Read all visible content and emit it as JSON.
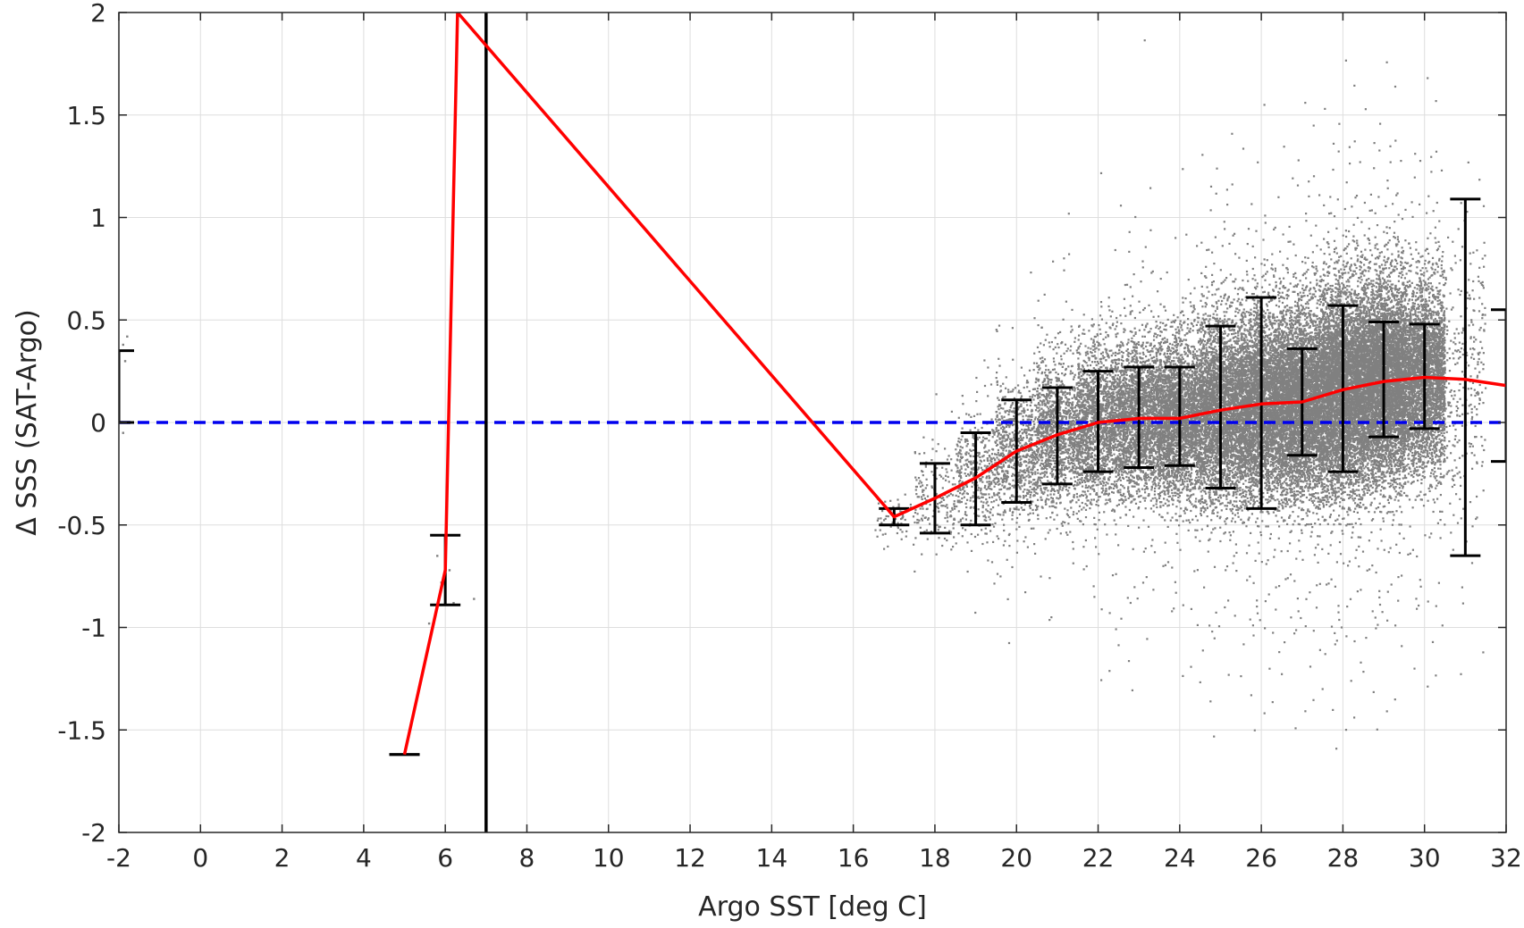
{
  "chart_data": {
    "type": "scatter",
    "xlabel": "Argo SST [deg C]",
    "ylabel": "Δ SSS (SAT-Argo)",
    "xlim": [
      -2,
      32
    ],
    "ylim": [
      -2,
      2
    ],
    "xticks": [
      -2,
      0,
      2,
      4,
      6,
      8,
      10,
      12,
      14,
      16,
      18,
      20,
      22,
      24,
      26,
      28,
      30,
      32
    ],
    "yticks": [
      -2,
      -1.5,
      -1,
      -0.5,
      0,
      0.5,
      1,
      1.5,
      2
    ],
    "xtick_labels": [
      "-2",
      "0",
      "2",
      "4",
      "6",
      "8",
      "10",
      "12",
      "14",
      "16",
      "18",
      "20",
      "22",
      "24",
      "26",
      "28",
      "30",
      "32"
    ],
    "ytick_labels": [
      "-2",
      "-1.5",
      "-1",
      "-0.5",
      "0",
      "0.5",
      "1",
      "1.5",
      "2"
    ],
    "grid": true,
    "colors": {
      "scatter": "#808080",
      "mean_line": "#ff0000",
      "error_bars": "#000000",
      "zero_line": "#0000ee",
      "vertical_line": "#000000"
    },
    "reference_line": {
      "y": 0,
      "style": "dashed"
    },
    "vertical_line": {
      "x": 7
    },
    "mean_line": {
      "x": [
        5,
        6,
        6.3,
        17,
        18,
        19,
        20,
        21,
        22,
        23,
        24,
        25,
        26,
        27,
        28,
        29,
        30,
        31,
        32
      ],
      "y": [
        -1.62,
        -0.72,
        2.0,
        -0.46,
        -0.37,
        -0.27,
        -0.14,
        -0.06,
        0.0,
        0.02,
        0.02,
        0.06,
        0.09,
        0.1,
        0.16,
        0.2,
        0.22,
        0.21,
        0.18
      ]
    },
    "error_bars": [
      {
        "x": -2,
        "low": 0.0,
        "high": 0.35
      },
      {
        "x": 5,
        "low": -1.62,
        "high": -1.62
      },
      {
        "x": 6,
        "low": -0.89,
        "high": -0.55
      },
      {
        "x": 17,
        "low": -0.5,
        "high": -0.42
      },
      {
        "x": 18,
        "low": -0.54,
        "high": -0.2
      },
      {
        "x": 19,
        "low": -0.5,
        "high": -0.05
      },
      {
        "x": 20,
        "low": -0.39,
        "high": 0.11
      },
      {
        "x": 21,
        "low": -0.3,
        "high": 0.17
      },
      {
        "x": 22,
        "low": -0.24,
        "high": 0.25
      },
      {
        "x": 23,
        "low": -0.22,
        "high": 0.27
      },
      {
        "x": 24,
        "low": -0.21,
        "high": 0.27
      },
      {
        "x": 25,
        "low": -0.32,
        "high": 0.47
      },
      {
        "x": 26,
        "low": -0.42,
        "high": 0.61
      },
      {
        "x": 27,
        "low": -0.16,
        "high": 0.36
      },
      {
        "x": 28,
        "low": -0.24,
        "high": 0.57
      },
      {
        "x": 29,
        "low": -0.07,
        "high": 0.49
      },
      {
        "x": 30,
        "low": -0.03,
        "high": 0.48
      },
      {
        "x": 31,
        "low": -0.65,
        "high": 1.09
      },
      {
        "x": 32,
        "low": -0.19,
        "high": 0.55
      }
    ],
    "scatter_density": [
      {
        "x": 17,
        "mean": -0.46,
        "spread": 0.08,
        "count": 60
      },
      {
        "x": 18,
        "mean": -0.37,
        "spread": 0.15,
        "count": 180
      },
      {
        "x": 19,
        "mean": -0.27,
        "spread": 0.2,
        "count": 420
      },
      {
        "x": 20,
        "mean": -0.14,
        "spread": 0.24,
        "count": 800
      },
      {
        "x": 21,
        "mean": -0.06,
        "spread": 0.24,
        "count": 1300
      },
      {
        "x": 22,
        "mean": 0.0,
        "spread": 0.25,
        "count": 1800
      },
      {
        "x": 23,
        "mean": 0.02,
        "spread": 0.25,
        "count": 2300
      },
      {
        "x": 24,
        "mean": 0.02,
        "spread": 0.25,
        "count": 2800
      },
      {
        "x": 25,
        "mean": 0.06,
        "spread": 0.3,
        "count": 3400
      },
      {
        "x": 26,
        "mean": 0.09,
        "spread": 0.3,
        "count": 4000
      },
      {
        "x": 27,
        "mean": 0.1,
        "spread": 0.3,
        "count": 4600
      },
      {
        "x": 28,
        "mean": 0.16,
        "spread": 0.33,
        "count": 5200
      },
      {
        "x": 29,
        "mean": 0.2,
        "spread": 0.32,
        "count": 5200
      },
      {
        "x": 30,
        "mean": 0.22,
        "spread": 0.3,
        "count": 3400
      },
      {
        "x": 31,
        "mean": 0.21,
        "spread": 0.45,
        "count": 300
      }
    ],
    "sparse_points": [
      {
        "x": -1.9,
        "y": 0.38
      },
      {
        "x": -1.85,
        "y": 0.3
      },
      {
        "x": -1.9,
        "y": -0.05
      },
      {
        "x": -1.8,
        "y": 0.42
      },
      {
        "x": 5.6,
        "y": -0.98
      },
      {
        "x": 5.9,
        "y": -0.78
      },
      {
        "x": 6.1,
        "y": -0.72
      },
      {
        "x": 6.7,
        "y": -0.86
      },
      {
        "x": 6.2,
        "y": -0.88
      },
      {
        "x": 5.8,
        "y": -0.65
      }
    ]
  }
}
